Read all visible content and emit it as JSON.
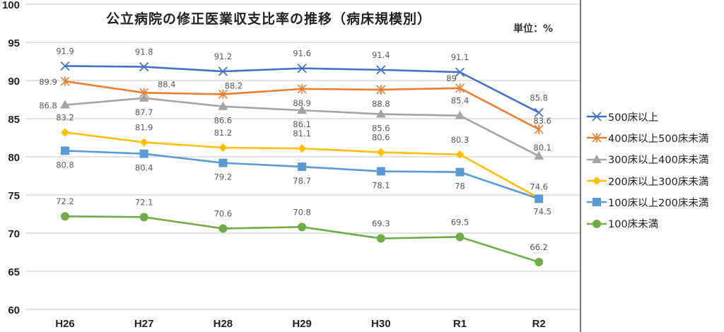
{
  "chart_data": {
    "type": "line",
    "title": "公立病院の修正医業収支比率の推移（病床規模別）",
    "unit_label": "単位：%",
    "categories": [
      "H26",
      "H27",
      "H28",
      "H29",
      "H30",
      "R1",
      "R2"
    ],
    "ylim": [
      60,
      100
    ],
    "yticks": [
      "60",
      "65",
      "70",
      "75",
      "80",
      "85",
      "90",
      "95",
      "100"
    ],
    "grid": true,
    "legend_position": "right",
    "series": [
      {
        "name": "500床以上",
        "color": "#4472C4",
        "marker": "x",
        "values": [
          91.9,
          91.8,
          91.2,
          91.6,
          91.4,
          91.1,
          85.8
        ],
        "labels": [
          "91.9",
          "91.8",
          "91.2",
          "91.6",
          "91.4",
          "91.1",
          "85.8"
        ]
      },
      {
        "name": "400床以上500床未満",
        "color": "#ED7D31",
        "marker": "star",
        "values": [
          89.9,
          88.4,
          88.2,
          88.9,
          88.8,
          89,
          83.6
        ],
        "labels": [
          "89.9",
          "88.4",
          "88.2",
          "88.9",
          "88.8",
          "89",
          "83.6"
        ]
      },
      {
        "name": "300床以上400床未満",
        "color": "#A5A5A5",
        "marker": "triangle",
        "values": [
          86.8,
          87.7,
          86.6,
          86.1,
          85.6,
          85.4,
          80.1
        ],
        "labels": [
          "86.8",
          "87.7",
          "86.6",
          "86.1",
          "85.6",
          "85.4",
          "80.1"
        ]
      },
      {
        "name": "200床以上300床未満",
        "color": "#FFC000",
        "marker": "diamond",
        "values": [
          83.2,
          81.9,
          81.2,
          81.1,
          80.6,
          80.3,
          74.6
        ],
        "labels": [
          "83.2",
          "81.9",
          "81.2",
          "81.1",
          "80.6",
          "80.3",
          "74.6"
        ]
      },
      {
        "name": "100床以上200床未満",
        "color": "#5B9BD5",
        "marker": "square",
        "values": [
          80.8,
          80.4,
          79.2,
          78.7,
          78.1,
          78,
          74.5
        ],
        "labels": [
          "80.8",
          "80.4",
          "79.2",
          "78.7",
          "78.1",
          "78",
          "74.5"
        ]
      },
      {
        "name": "100床未満",
        "color": "#70AD47",
        "marker": "circle",
        "values": [
          72.2,
          72.1,
          70.6,
          70.8,
          69.3,
          69.5,
          66.2
        ],
        "labels": [
          "72.2",
          "72.1",
          "70.6",
          "70.8",
          "69.3",
          "69.5",
          "66.2"
        ]
      }
    ]
  }
}
